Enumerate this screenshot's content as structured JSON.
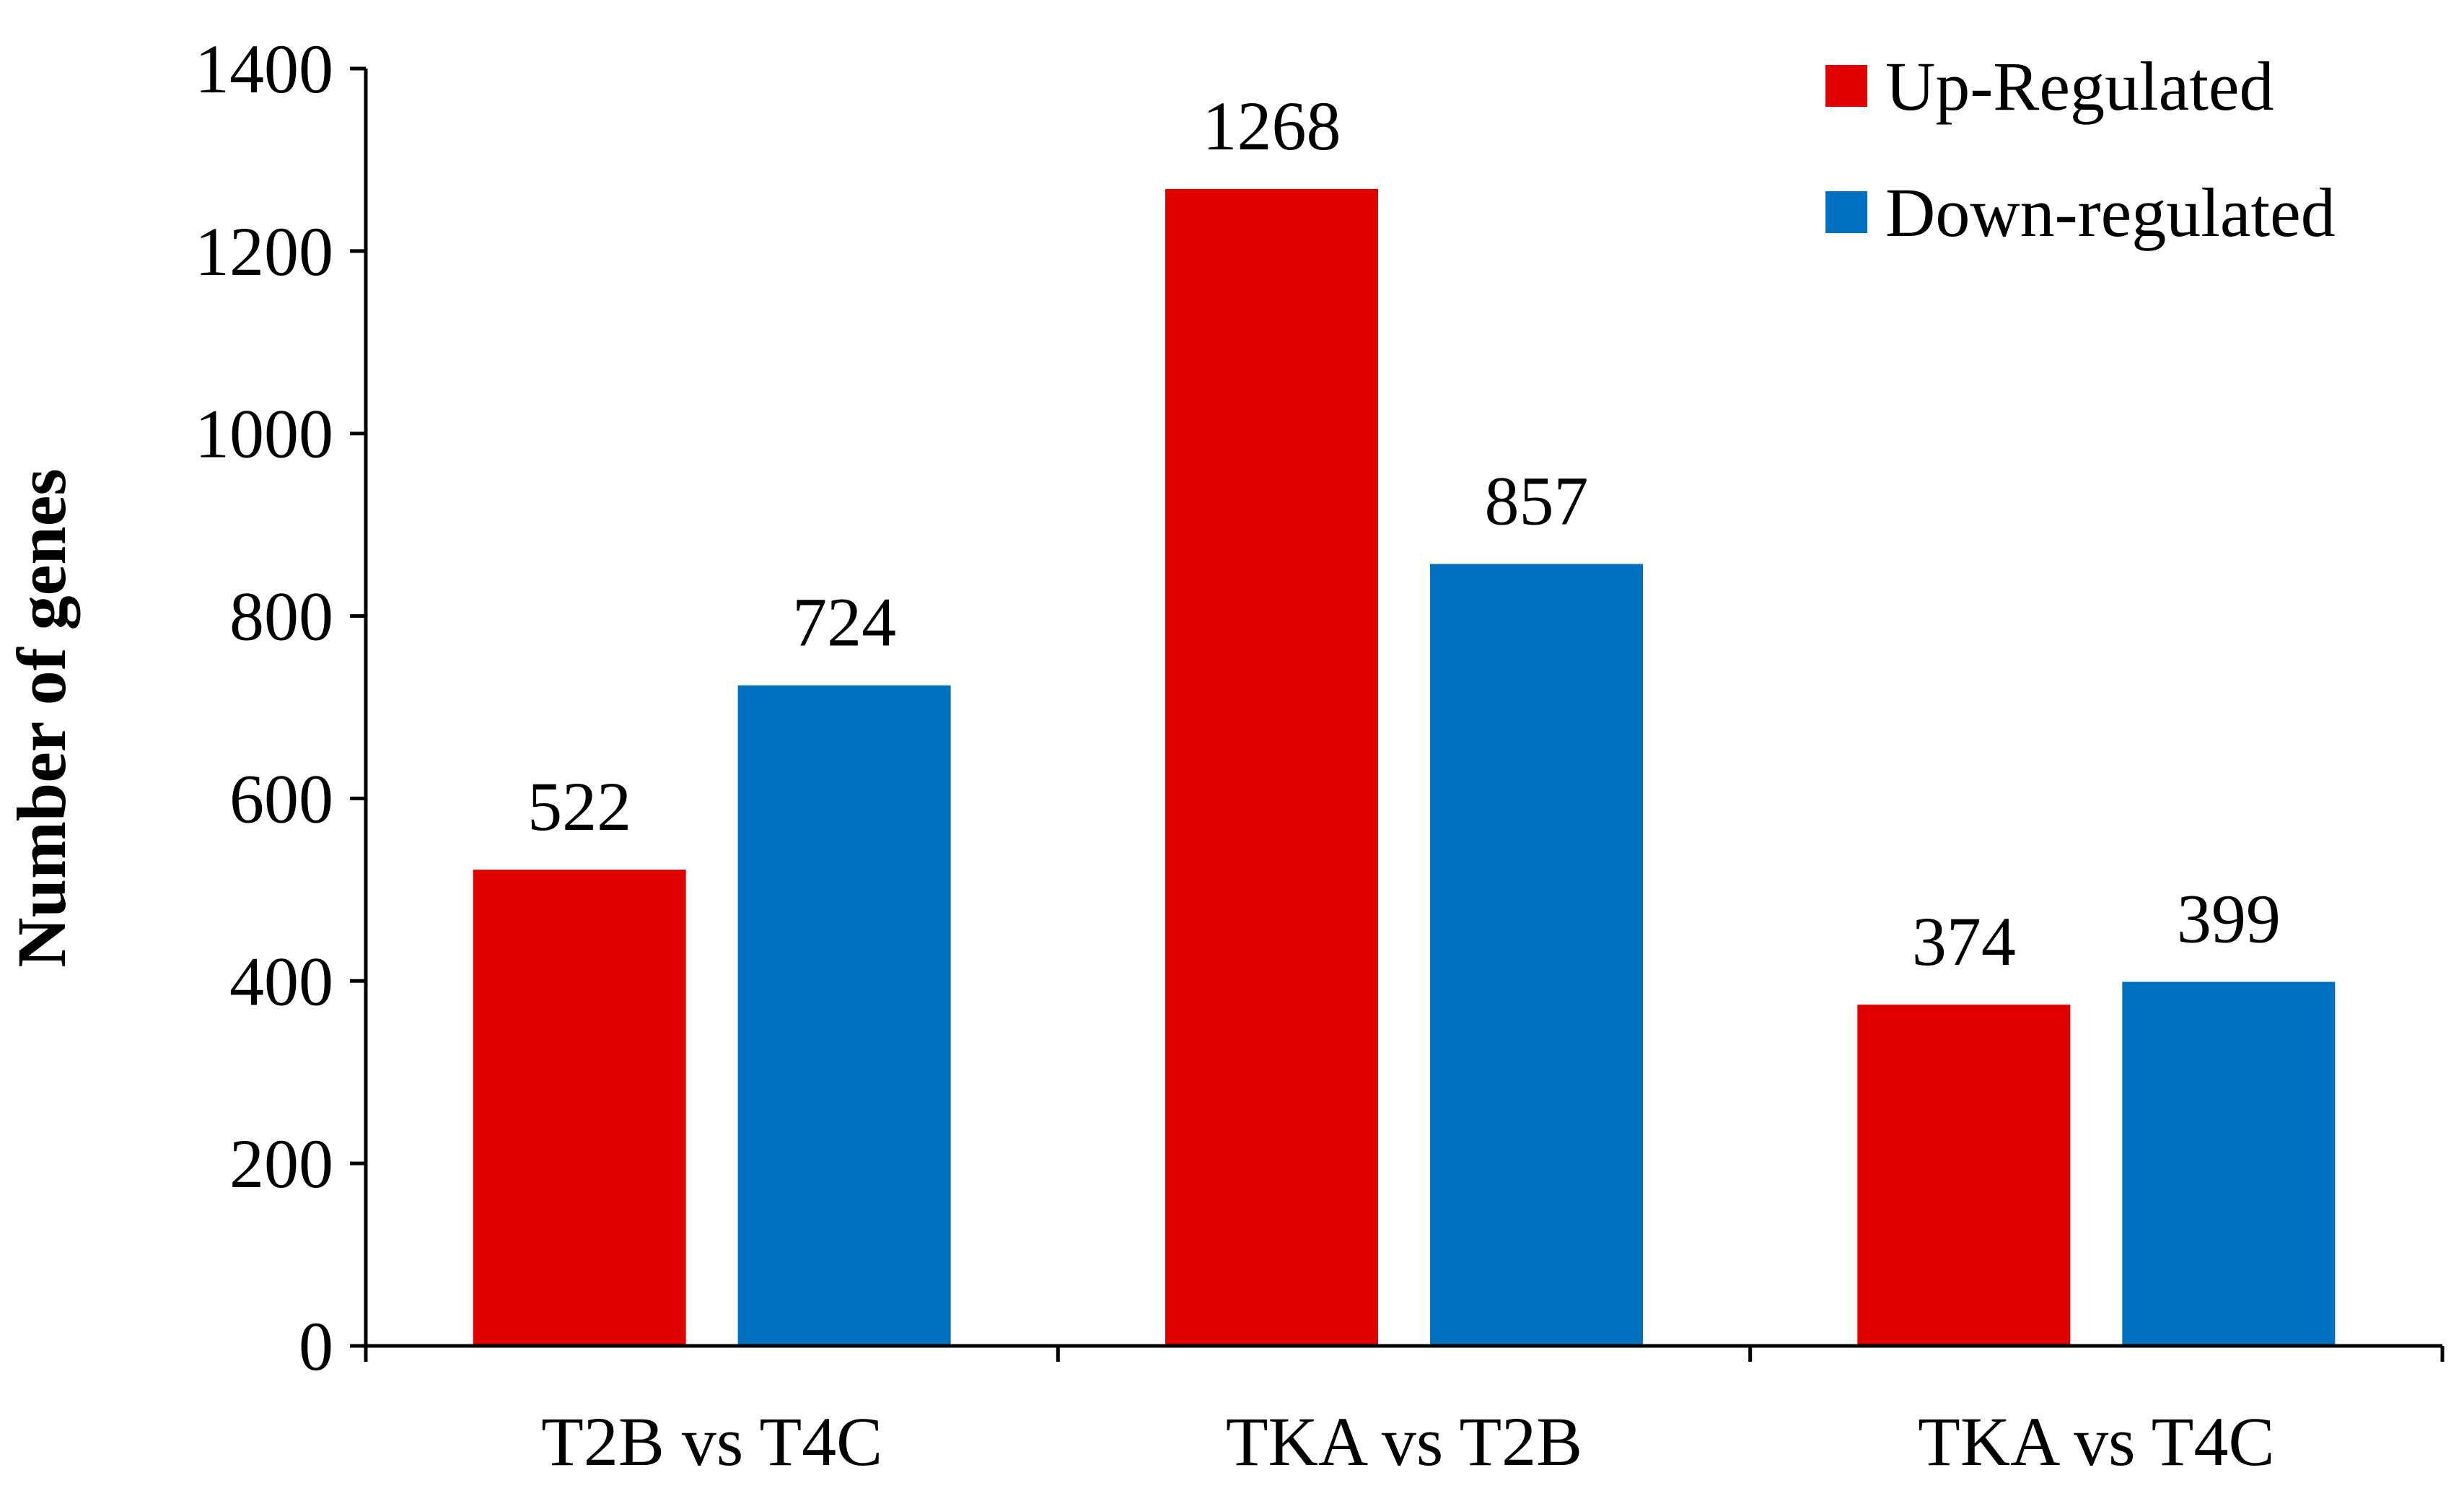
{
  "chart_data": {
    "type": "bar",
    "title": "",
    "xlabel": "",
    "ylabel": "Number of genes",
    "categories": [
      "T2B vs T4C",
      "TKA vs T2B",
      "TKA vs T4C"
    ],
    "series": [
      {
        "name": "Up-Regulated",
        "color": "#E00000",
        "values": [
          522,
          1268,
          374
        ]
      },
      {
        "name": "Down-regulated",
        "color": "#0070C0",
        "values": [
          724,
          857,
          399
        ]
      }
    ],
    "ylim": [
      0,
      1400
    ],
    "yticks": [
      0,
      200,
      400,
      600,
      800,
      1000,
      1200,
      1400
    ],
    "grid": false,
    "legend_position": "top-right",
    "data_labels": true
  }
}
